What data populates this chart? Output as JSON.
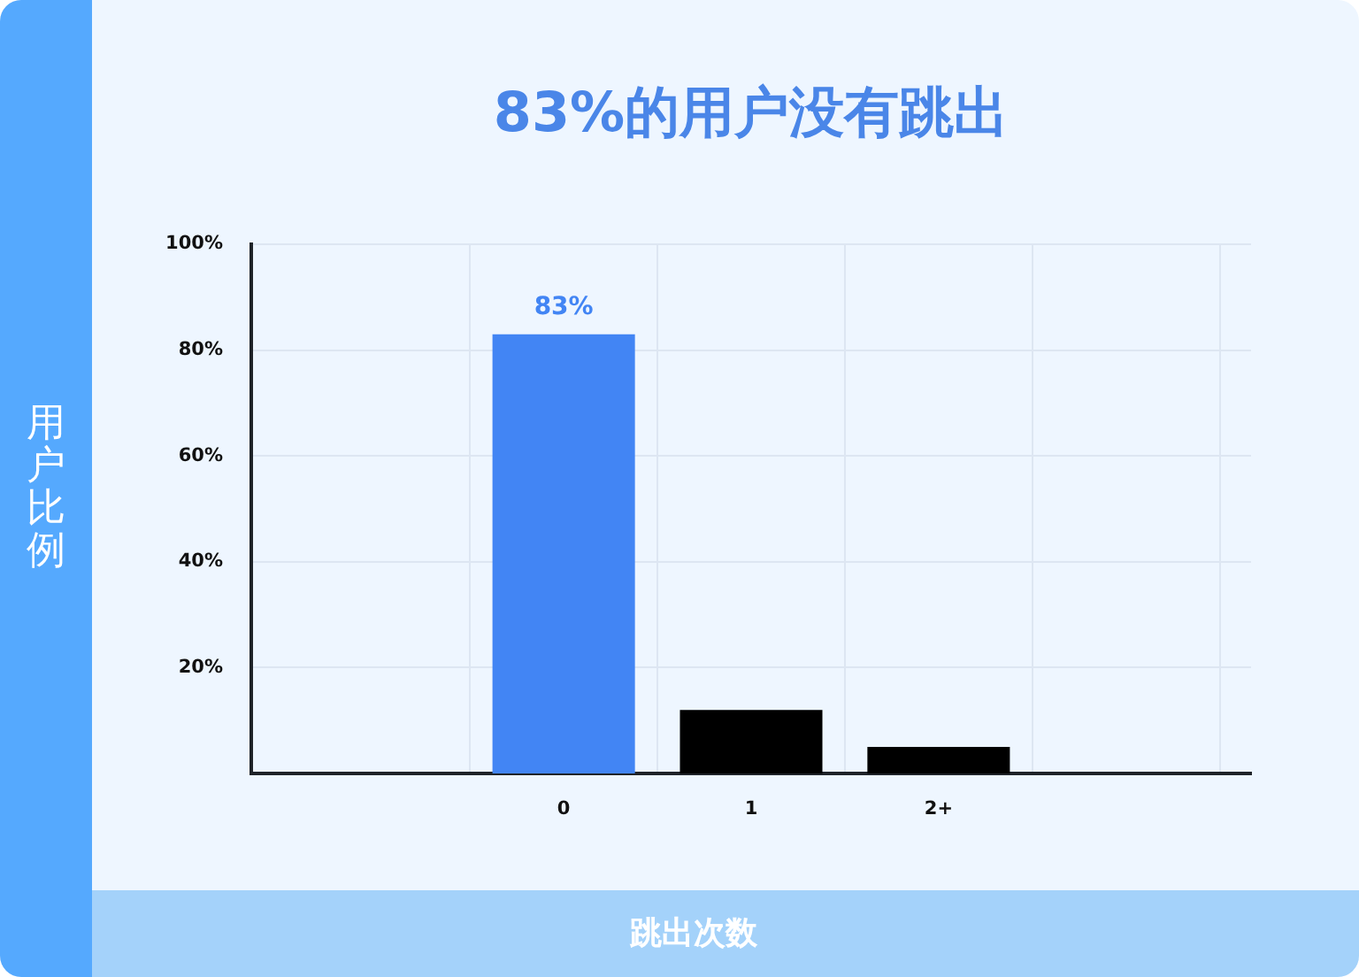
{
  "chart_data": {
    "type": "bar",
    "title": "83%的用户没有跳出",
    "xlabel": "跳出次数",
    "ylabel": "用户比例",
    "categories": [
      "0",
      "1",
      "2+"
    ],
    "values": [
      83,
      12,
      5
    ],
    "colors": [
      "#4285f4",
      "#000000",
      "#000000"
    ],
    "value_labels": [
      "83%",
      null,
      null
    ],
    "ylim": [
      0,
      100
    ],
    "yticks": [
      {
        "value": 20,
        "label": "20%"
      },
      {
        "value": 40,
        "label": "40%"
      },
      {
        "value": 60,
        "label": "60%"
      },
      {
        "value": 80,
        "label": "80%"
      },
      {
        "value": 100,
        "label": "100%"
      }
    ],
    "grid": true
  }
}
